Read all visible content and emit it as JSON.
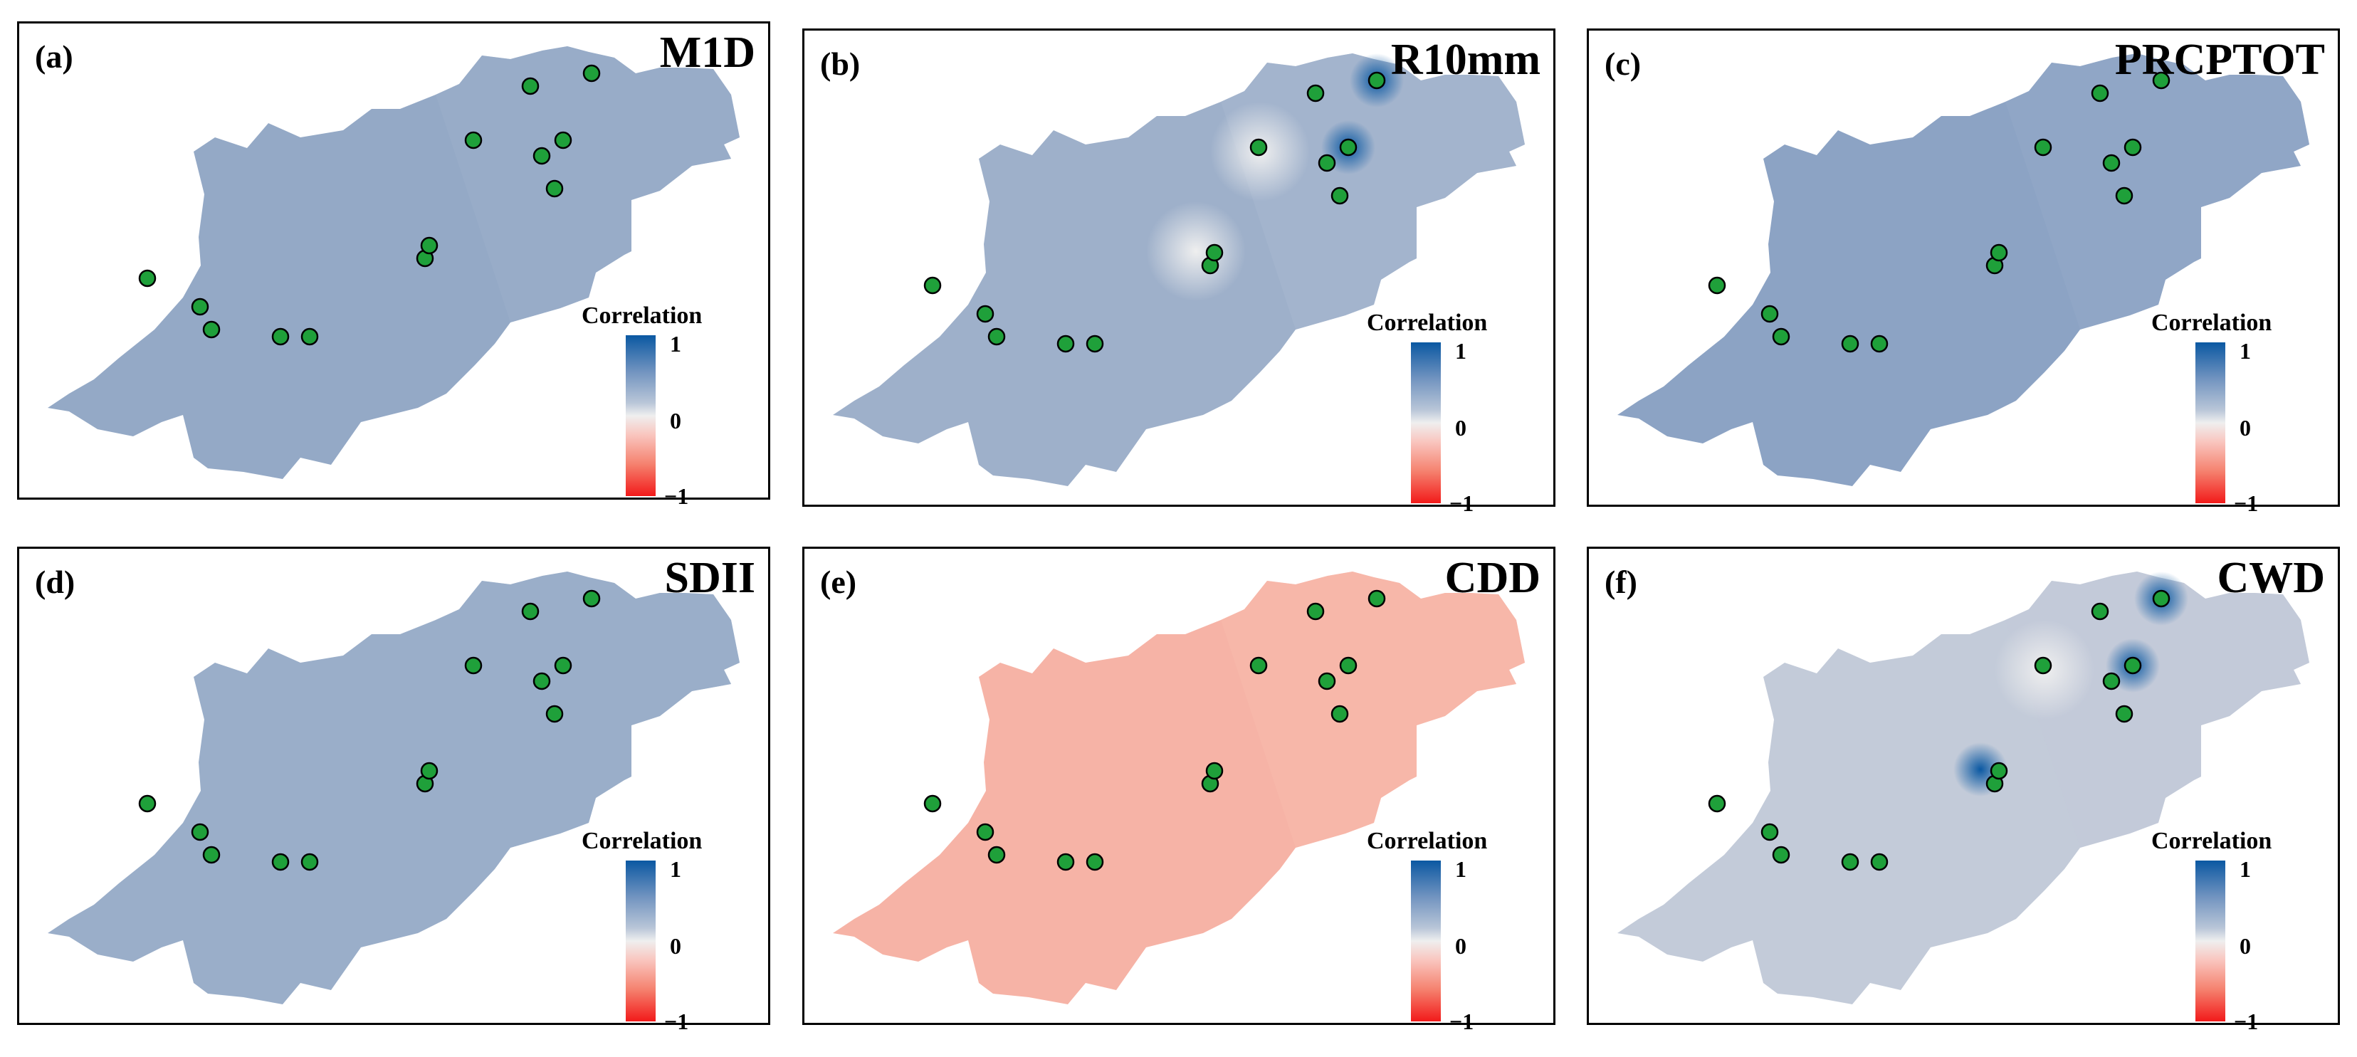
{
  "legend": {
    "title": "Correlation",
    "ticks": [
      "1",
      "0",
      "−1"
    ]
  },
  "colors": {
    "positive_strong": "#0a58a2",
    "positive": "#8fa6c6",
    "neutral": "#efefef",
    "negative": "#f7b3a6",
    "negative_strong": "#f21a1a",
    "station": "#1fa03a"
  },
  "panels": [
    {
      "label": "(a)",
      "title": "M1D",
      "fill": "#94a9c6",
      "fill_east": "#9aaecb",
      "hotspots": []
    },
    {
      "label": "(b)",
      "title": "R10mm",
      "fill": "#9eb0ca",
      "fill_east": "#a8b8cf",
      "hotspots": [
        "light",
        "light",
        "dark",
        "dark"
      ]
    },
    {
      "label": "(c)",
      "title": "PRCPTOT",
      "fill": "#8ca3c4",
      "fill_east": "#94aac8",
      "hotspots": []
    },
    {
      "label": "(d)",
      "title": "SDII",
      "fill": "#9aaec9",
      "fill_east": "#9aaec9",
      "hotspots": []
    },
    {
      "label": "(e)",
      "title": "CDD",
      "fill": "#f6b3a6",
      "fill_east": "#f8b9ac",
      "hotspots": []
    },
    {
      "label": "(f)",
      "title": "CWD",
      "fill": "#c3cbd9",
      "fill_east": "#c3cbd9",
      "hotspots": [
        "light",
        "dark",
        "dark",
        "dark"
      ]
    }
  ]
}
